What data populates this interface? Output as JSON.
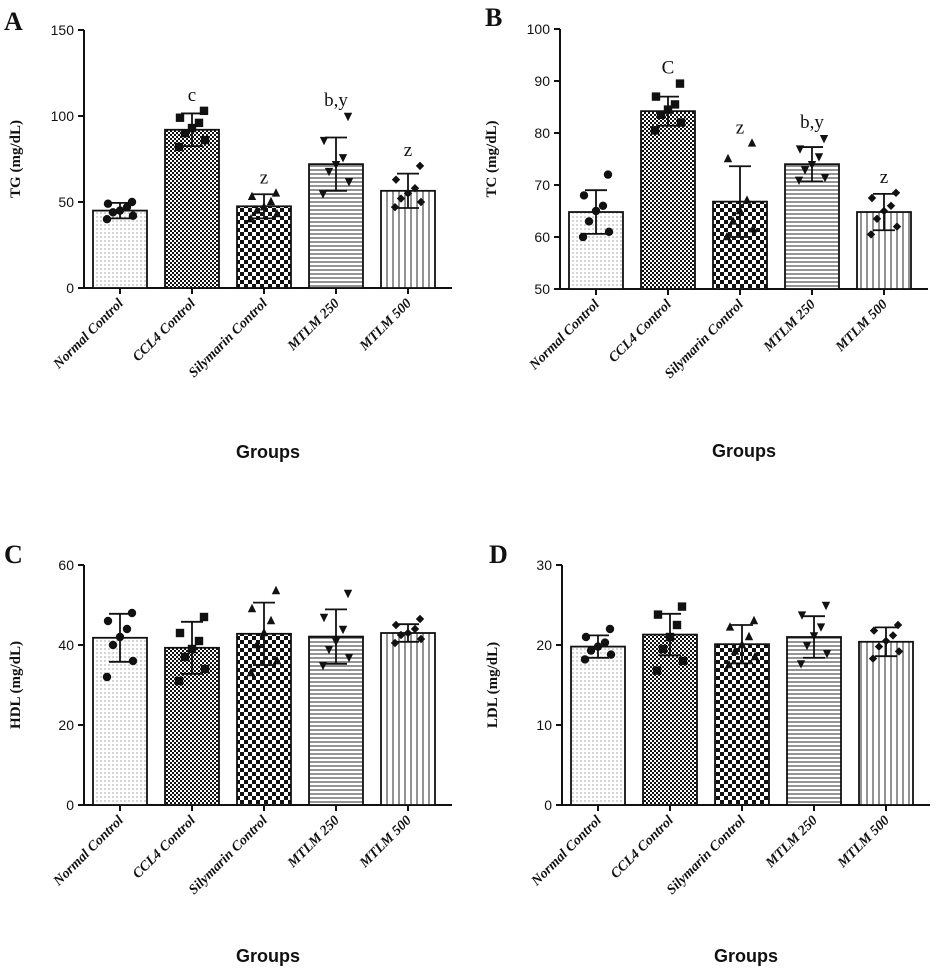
{
  "categories": [
    "Normal Control",
    "CCL4 Control",
    "Silymarin Control",
    "MTLM 250",
    "MTLM 500"
  ],
  "chart_data": [
    {
      "panel": "A",
      "type": "bar",
      "ylabel": "TG (mg/dL)",
      "xlabel": "Groups",
      "ylim": [
        0,
        150
      ],
      "yticks": [
        0,
        50,
        100,
        150
      ],
      "values": [
        45,
        92,
        47.5,
        72,
        56.5
      ],
      "errors": [
        4.5,
        9.5,
        7,
        15.5,
        10
      ],
      "significance": [
        "",
        "c",
        "z",
        "b,y",
        "z"
      ],
      "points": [
        [
          40,
          42,
          44,
          45,
          47,
          49,
          50
        ],
        [
          82,
          86,
          90,
          93,
          96,
          99,
          103
        ],
        [
          40,
          43,
          45,
          47,
          50,
          53,
          55
        ],
        [
          55,
          62,
          68,
          72,
          76,
          86,
          100
        ],
        [
          47,
          50,
          52,
          55,
          58,
          63,
          71
        ]
      ]
    },
    {
      "panel": "B",
      "type": "bar",
      "ylabel": "TC (mg/dL)",
      "xlabel": "Groups",
      "ylim": [
        50,
        100
      ],
      "yticks": [
        50,
        60,
        70,
        80,
        90,
        100
      ],
      "values": [
        64.8,
        84.2,
        66.8,
        74,
        64.8
      ],
      "errors": [
        4.2,
        2.8,
        6.8,
        3.3,
        3.5
      ],
      "significance": [
        "",
        "C",
        "z",
        "b,y",
        "z"
      ],
      "points": [
        [
          60,
          61,
          63,
          65,
          66,
          68,
          72
        ],
        [
          80.5,
          82,
          83.5,
          84.5,
          85.5,
          87,
          89.5
        ],
        [
          60,
          61.5,
          63,
          65,
          67,
          75,
          78
        ],
        [
          71,
          71.5,
          73,
          74,
          75.5,
          77,
          79
        ],
        [
          60.5,
          62,
          63.5,
          65,
          66,
          67.5,
          68.5
        ]
      ]
    },
    {
      "panel": "C",
      "type": "bar",
      "ylabel": "HDL (mg/dL)",
      "xlabel": "Groups",
      "ylim": [
        0,
        60
      ],
      "yticks": [
        0,
        20,
        40,
        60
      ],
      "values": [
        41.8,
        39.3,
        42.8,
        42.1,
        43
      ],
      "errors": [
        6,
        6.5,
        7.8,
        6.8,
        2.2
      ],
      "significance": [
        "",
        "",
        "",
        "",
        ""
      ],
      "points": [
        [
          32,
          36,
          40,
          42,
          44,
          46,
          48
        ],
        [
          31,
          34,
          37,
          39,
          41,
          43,
          47
        ],
        [
          33,
          36,
          40,
          43,
          46,
          49,
          53.5
        ],
        [
          35,
          37,
          39,
          41,
          44,
          47,
          53
        ],
        [
          40.5,
          41.5,
          42.5,
          43,
          44,
          45,
          46.5
        ]
      ]
    },
    {
      "panel": "D",
      "type": "bar",
      "ylabel": "LDL (mg/dL)",
      "xlabel": "Groups",
      "ylim": [
        0,
        30
      ],
      "yticks": [
        0,
        10,
        20,
        30
      ],
      "values": [
        19.8,
        21.3,
        20.1,
        21,
        20.4
      ],
      "errors": [
        1.4,
        2.6,
        2.4,
        2.6,
        1.8
      ],
      "significance": [
        "",
        "",
        "",
        "",
        ""
      ],
      "points": [
        [
          18.2,
          18.8,
          19.3,
          19.8,
          20.3,
          21,
          22
        ],
        [
          16.8,
          18,
          19.5,
          21,
          22.5,
          23.8,
          24.8
        ],
        [
          17.5,
          18.5,
          19.2,
          20,
          21,
          22.2,
          23
        ],
        [
          17.7,
          19,
          20,
          21.2,
          22.3,
          23.8,
          25
        ],
        [
          18.3,
          19.2,
          19.8,
          20.5,
          21.2,
          21.8,
          22.5
        ]
      ]
    }
  ]
}
